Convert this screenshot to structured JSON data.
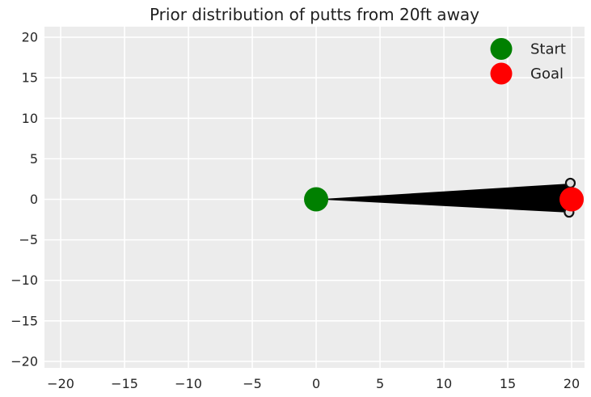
{
  "chart_data": {
    "type": "scatter",
    "title": "Prior distribution of putts from 20ft away",
    "xlabel": "",
    "ylabel": "",
    "xlim": [
      -21.27,
      21.01
    ],
    "ylim": [
      -20.8,
      21.3
    ],
    "x_ticks": [
      -20,
      -15,
      -10,
      -5,
      0,
      5,
      10,
      15,
      20
    ],
    "x_tick_labels": [
      "−20",
      "−15",
      "−10",
      "−5",
      "0",
      "5",
      "10",
      "15",
      "20"
    ],
    "y_ticks": [
      -20,
      -15,
      -10,
      -5,
      0,
      5,
      10,
      15,
      20
    ],
    "y_tick_labels": [
      "−20",
      "−15",
      "−10",
      "−5",
      "0",
      "5",
      "10",
      "15",
      "20"
    ],
    "grid": true,
    "legend_position": "upper right",
    "styles": {
      "plot_bg": "#ECECEC",
      "grid_color": "#FFFFFF",
      "text_color": "#262626",
      "fan_color": "#000000",
      "start_color": "#008000",
      "goal_color": "#FF0000",
      "end_marker_fill": "#DCDCDC",
      "end_marker_stroke": "#111111"
    },
    "points": [
      {
        "name": "start",
        "label": "Start",
        "x": 0,
        "y": 0,
        "color": "#008000"
      },
      {
        "name": "goal",
        "label": "Goal",
        "x": 20,
        "y": 0,
        "color": "#FF0000"
      }
    ],
    "fan": {
      "description": "dense bundle of sampled putt trajectories fanning out from Start toward Goal",
      "apex": [
        0,
        0
      ],
      "end_x_top": 19.95,
      "end_y_top": 1.95,
      "end_x_bottom": 19.9,
      "end_y_bottom": -1.65
    },
    "end_markers": [
      {
        "x": 19.9,
        "y": 2.0
      },
      {
        "x": 19.8,
        "y": -1.6
      }
    ],
    "legend": {
      "entries": [
        {
          "label": "Start",
          "color": "#008000"
        },
        {
          "label": "Goal",
          "color": "#FF0000"
        }
      ]
    }
  }
}
